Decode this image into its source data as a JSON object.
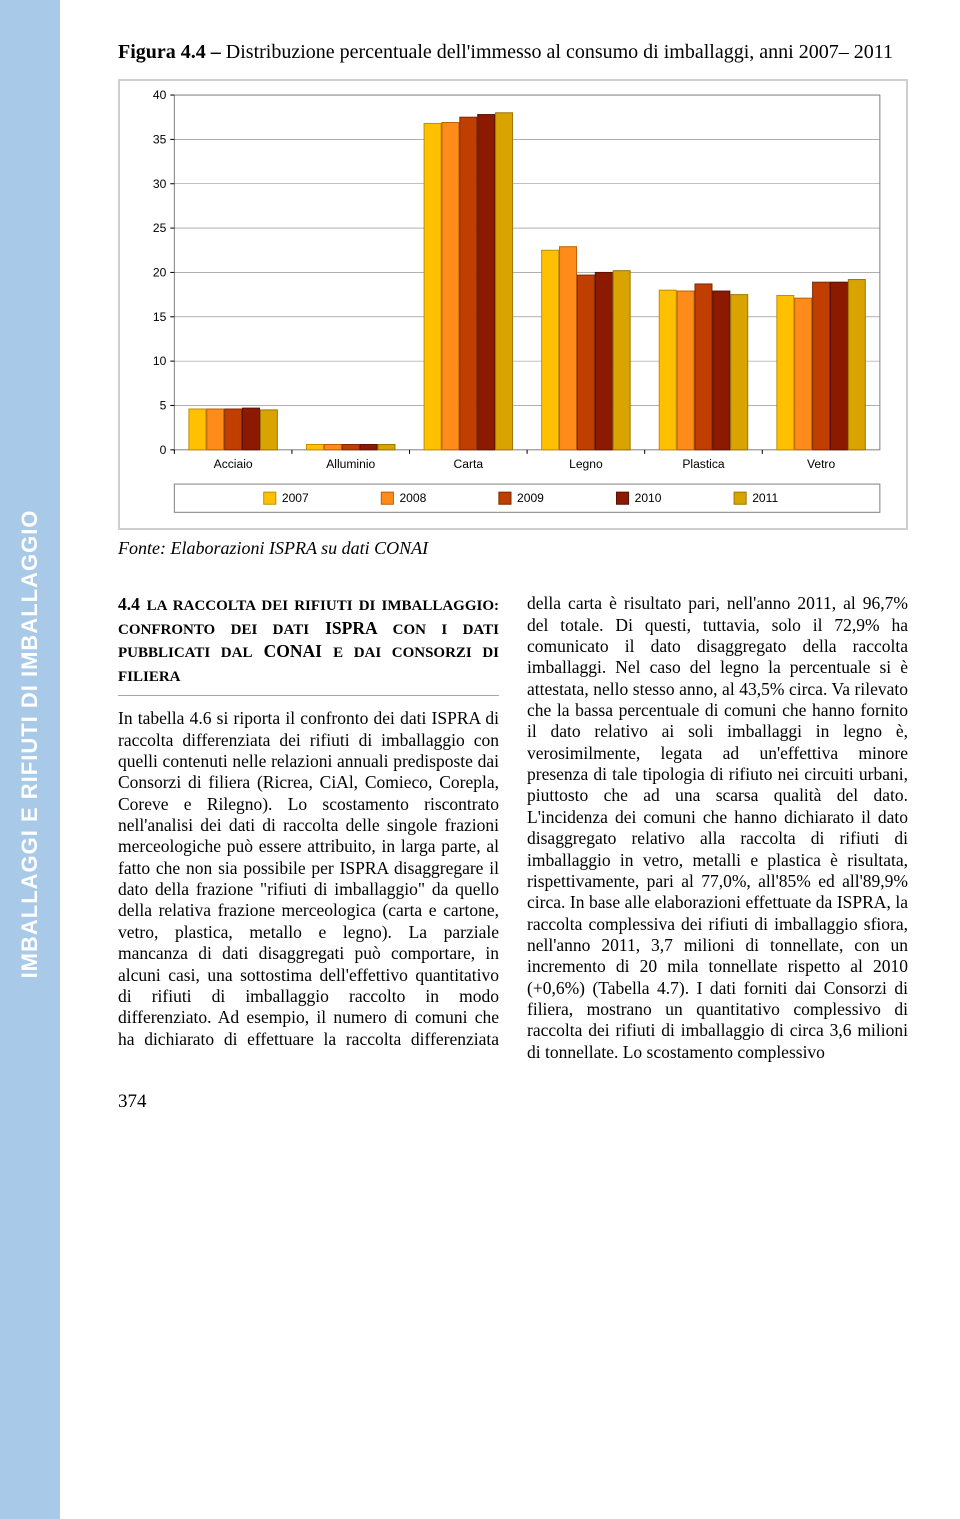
{
  "sidebar": {
    "label": "IMBALLAGGI E RIFIUTI DI IMBALLAGGIO"
  },
  "figure": {
    "title_prefix": "Figura 4.4 – ",
    "title_rest": "Distribuzione percentuale dell'immesso al consumo di imballaggi, anni 2007– 2011",
    "source": "Fonte: Elaborazioni ISPRA su dati CONAI"
  },
  "chart": {
    "type": "bar",
    "background_color": "#ffffff",
    "plot_border_color": "#808080",
    "grid_color": "#808080",
    "axis_color": "#000000",
    "axis_fontsize": 12,
    "ylim": [
      0,
      40
    ],
    "ytick_step": 5,
    "yticks": [
      0,
      5,
      10,
      15,
      20,
      25,
      30,
      35,
      40
    ],
    "categories": [
      "Acciaio",
      "Alluminio",
      "Carta",
      "Legno",
      "Plastica",
      "Vetro"
    ],
    "series": [
      {
        "label": "2007",
        "color": "#ffc000",
        "border": "#c09000",
        "values": [
          4.6,
          0.6,
          36.8,
          22.5,
          18.0,
          17.4
        ]
      },
      {
        "label": "2008",
        "color": "#ff8c1a",
        "border": "#bf5e00",
        "values": [
          4.6,
          0.6,
          36.9,
          22.9,
          17.9,
          17.1
        ]
      },
      {
        "label": "2009",
        "color": "#bf3e00",
        "border": "#802900",
        "values": [
          4.6,
          0.6,
          37.5,
          19.7,
          18.7,
          18.9
        ]
      },
      {
        "label": "2010",
        "color": "#8b1a00",
        "border": "#5a1100",
        "values": [
          4.7,
          0.6,
          37.8,
          20.0,
          17.9,
          18.9
        ]
      },
      {
        "label": "2011",
        "color": "#d9a300",
        "border": "#9e7600",
        "values": [
          4.5,
          0.6,
          38.0,
          20.2,
          17.5,
          19.2
        ]
      }
    ],
    "bar_group_width": 0.76,
    "bar_rel_width": 0.95
  },
  "body": {
    "section_num": "4.4",
    "section_title_sc1": "La raccolta dei rifiuti di imballaggio: confronto dei dati",
    "section_title_ispra": " ISPRA ",
    "section_title_sc2": "con i dati pubblicati dal",
    "section_title_conai": " CONAI ",
    "section_title_sc3": "e dai Consorzi di filiera",
    "p1": "In tabella 4.6 si riporta il confronto dei dati ISPRA di raccolta differenziata dei rifiuti di imballaggio con quelli contenuti nelle relazioni annuali predisposte dai Consorzi di filiera (Ricrea, CiAl, Comieco, Corepla, Coreve e Rilegno).",
    "p2": "Lo scostamento riscontrato nell'analisi dei dati di raccolta delle singole frazioni merceologiche può essere attribuito, in larga parte, al fatto che non sia possibile per ISPRA disaggregare il dato della frazione \"rifiuti di imballaggio\" da quello della relativa frazione merceologica (carta e cartone, vetro, plastica, metallo e legno).",
    "p3": "La parziale mancanza di dati disaggregati può comportare, in alcuni casi, una sottostima dell'effettivo quantitativo di rifiuti di imballaggio raccolto in modo differenziato.",
    "p4": "Ad esempio, il numero di comuni che ha dichiarato di effettuare la raccolta differenziata della carta è risultato pari, nell'anno 2011, al 96,7% del totale. Di questi, tuttavia, solo il 72,9% ha comunicato il dato disaggregato della raccolta imballaggi. Nel caso del legno la percentuale si è attestata, nello stesso anno, al 43,5% circa. Va rilevato che la bassa percentuale di comuni che hanno fornito il dato relativo ai soli imballaggi in legno è, verosimilmente, legata ad un'effettiva minore presenza di tale tipologia di rifiuto nei circuiti urbani, piuttosto che ad una scarsa qualità del dato.",
    "p5": "L'incidenza dei comuni che hanno dichiarato il dato disaggregato relativo alla raccolta di rifiuti di imballaggio in vetro, metalli e plastica è risultata, rispettivamente, pari al 77,0%, all'85% ed all'89,9% circa.",
    "p6": "In base alle elaborazioni effettuate da ISPRA, la raccolta complessiva dei rifiuti di imballaggio sfiora, nell'anno 2011, 3,7 milioni di tonnellate, con un incremento di 20 mila tonnellate rispetto al 2010 (+0,6%) (Tabella 4.7).",
    "p7": "I dati forniti dai Consorzi di filiera, mostrano un quantitativo complessivo di raccolta dei rifiuti di imballaggio di circa 3,6 milioni di tonnellate. Lo scostamento complessivo"
  },
  "page_number": "374"
}
